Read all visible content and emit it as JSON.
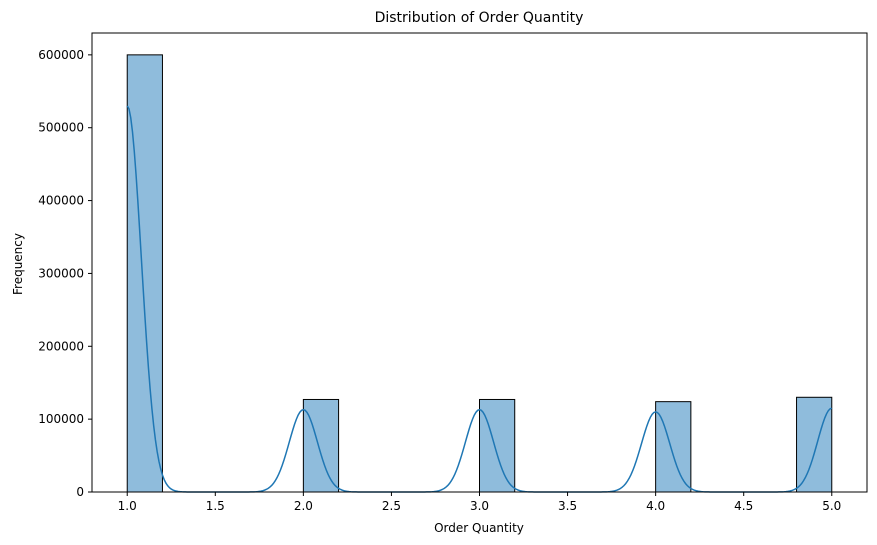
{
  "chart_data": {
    "type": "bar",
    "title": "Distribution of Order Quantity",
    "xlabel": "Order Quantity",
    "ylabel": "Frequency",
    "xlim": [
      0.8,
      5.2
    ],
    "ylim": [
      0,
      630000
    ],
    "x_ticks": [
      "1.0",
      "1.5",
      "2.0",
      "2.5",
      "3.0",
      "3.5",
      "4.0",
      "4.5",
      "5.0"
    ],
    "y_ticks": [
      "0",
      "100000",
      "200000",
      "300000",
      "400000",
      "500000",
      "600000"
    ],
    "bin_width": 0.2,
    "bins": [
      {
        "start": 1.0,
        "end": 1.2,
        "count": 600000
      },
      {
        "start": 2.0,
        "end": 2.2,
        "count": 127000
      },
      {
        "start": 3.0,
        "end": 3.2,
        "count": 127000
      },
      {
        "start": 4.0,
        "end": 4.2,
        "count": 124000
      },
      {
        "start": 4.8,
        "end": 5.0,
        "count": 130000
      }
    ],
    "kde": {
      "peaks": [
        {
          "x": 1.0,
          "height": 530000
        },
        {
          "x": 2.0,
          "height": 113000
        },
        {
          "x": 3.0,
          "height": 113000
        },
        {
          "x": 4.0,
          "height": 110000
        },
        {
          "x": 5.0,
          "height": 115000
        }
      ],
      "sigma": 0.08
    },
    "grid": false,
    "colors": {
      "bar_fill": "#8fbcdc",
      "bar_edge": "#000000",
      "kde_line": "#1f77b4"
    }
  }
}
